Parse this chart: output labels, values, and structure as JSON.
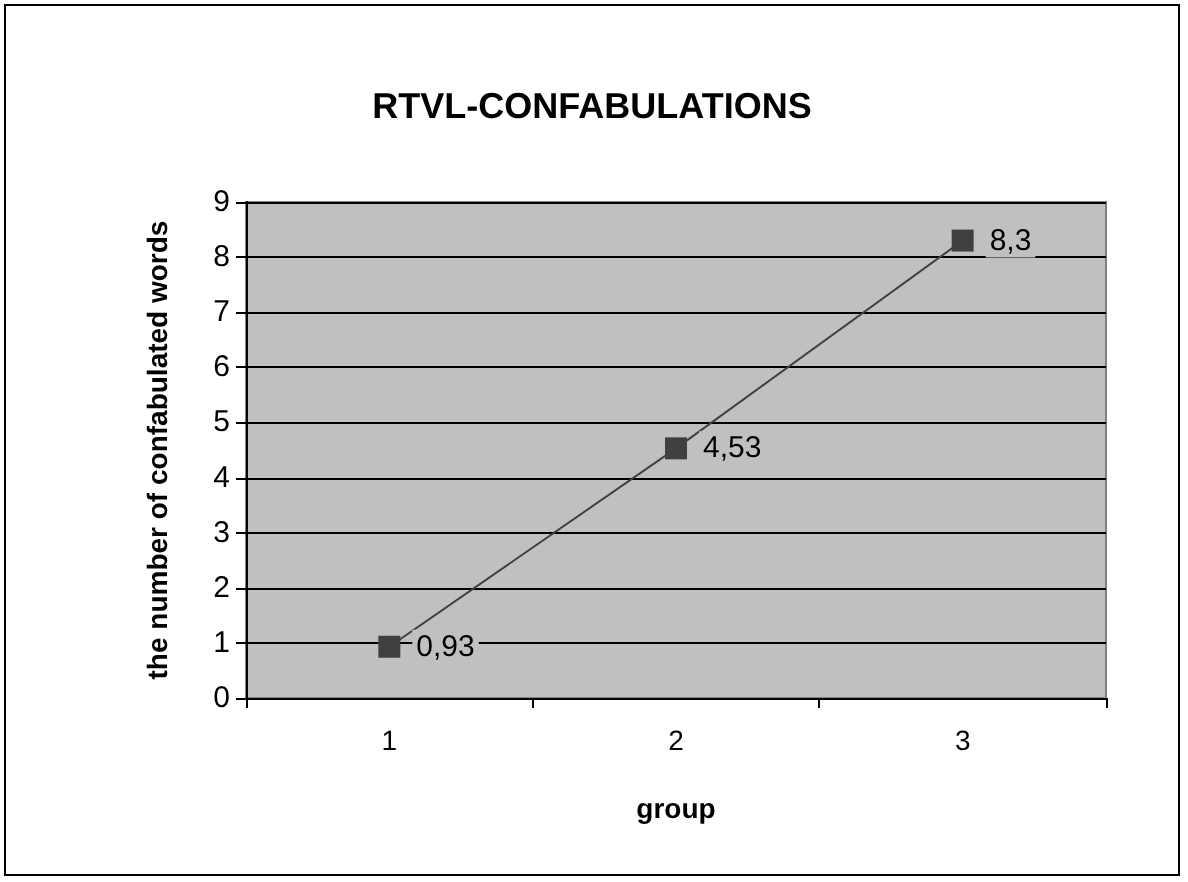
{
  "chart_data": {
    "type": "line",
    "title": "RTVL-CONFABULATIONS",
    "xlabel": "group",
    "ylabel": "the number of confabulated words",
    "categories": [
      "1",
      "2",
      "3"
    ],
    "series": [
      {
        "color": "#404040",
        "values": [
          0.93,
          4.53,
          8.3
        ],
        "value_labels": [
          "0,93",
          "4,53",
          "8,3"
        ]
      }
    ],
    "ylim": [
      0,
      9
    ],
    "yticks": [
      0,
      1,
      2,
      3,
      4,
      5,
      6,
      7,
      8,
      9
    ],
    "grid": "y",
    "marker": "square",
    "line_style": "solid"
  }
}
